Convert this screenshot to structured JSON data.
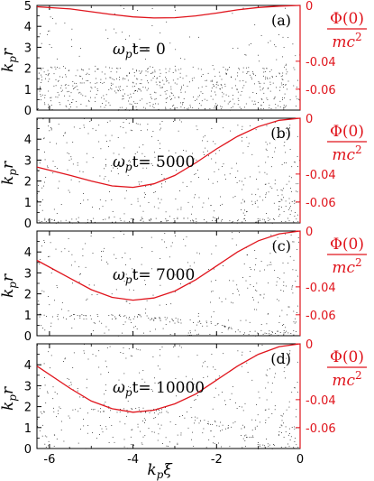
{
  "chart_data": [
    {
      "type": "scatter",
      "panel_label": "(a)",
      "annotation": {
        "prefix": "ω",
        "sub": "p",
        "text": "t= 0"
      },
      "xlim": [
        -6.3,
        0
      ],
      "ylim": [
        0,
        5
      ],
      "xticks": [
        "-6",
        "-4",
        "-2",
        "0"
      ],
      "xtick_values": [
        -6,
        -4,
        -2,
        0
      ],
      "yticks": [
        "0",
        "1",
        "2",
        "3",
        "4",
        "5"
      ],
      "ytick_values": [
        0,
        1,
        2,
        3,
        4,
        5
      ],
      "xlabel": {
        "main": "k",
        "sub": "p",
        "tail": "ξ"
      },
      "ylabel": {
        "main": "k",
        "sub": "p",
        "tail": "r"
      },
      "right_axis": {
        "label": {
          "num": "Φ(0)",
          "den_main": "mc",
          "den_sup": "2"
        },
        "ylim": [
          -0.075,
          0.0
        ],
        "ticks": [
          "0",
          "-0.04",
          "-0.06"
        ],
        "tick_values": [
          0,
          -0.04,
          -0.06
        ],
        "series": {
          "name": "Φ(0)/mc²",
          "color": "#e0141c",
          "x": [
            -6.3,
            -5.5,
            -5.0,
            -4.5,
            -4.0,
            -3.5,
            -3.0,
            -2.5,
            -2.0,
            -1.5,
            -1.0,
            -0.5,
            0
          ],
          "y": [
            -0.001,
            -0.0025,
            -0.0045,
            -0.0065,
            -0.0082,
            -0.009,
            -0.0088,
            -0.0075,
            -0.0055,
            -0.0032,
            -0.0015,
            -0.0005,
            0
          ]
        }
      },
      "particles": {
        "color": "#000000",
        "density": "uniform below kpr≈2.1, sparse above"
      }
    },
    {
      "type": "scatter",
      "panel_label": "(b)",
      "annotation": {
        "prefix": "ω",
        "sub": "p",
        "text": "t= 5000"
      },
      "xlim": [
        -6.3,
        0
      ],
      "ylim": [
        0,
        5
      ],
      "xticks": [
        "-6",
        "-4",
        "-2",
        "0"
      ],
      "xtick_values": [
        -6,
        -4,
        -2,
        0
      ],
      "yticks": [
        "0",
        "1",
        "2",
        "3",
        "4"
      ],
      "ytick_values": [
        0,
        1,
        2,
        3,
        4
      ],
      "xlabel": {
        "main": "k",
        "sub": "p",
        "tail": "ξ"
      },
      "ylabel": {
        "main": "k",
        "sub": "p",
        "tail": "r"
      },
      "right_axis": {
        "label": {
          "num": "Φ(0)",
          "den_main": "mc",
          "den_sup": "2"
        },
        "ylim": [
          -0.075,
          0.0
        ],
        "ticks": [
          "0",
          "-0.04",
          "-0.06"
        ],
        "tick_values": [
          0,
          -0.04,
          -0.06
        ],
        "series": {
          "name": "Φ(0)/mc²",
          "color": "#e0141c",
          "x": [
            -6.3,
            -5.5,
            -5.0,
            -4.5,
            -4.0,
            -3.5,
            -3.0,
            -2.5,
            -2.0,
            -1.5,
            -1.0,
            -0.5,
            0
          ],
          "y": [
            -0.035,
            -0.041,
            -0.045,
            -0.0485,
            -0.0495,
            -0.047,
            -0.041,
            -0.032,
            -0.022,
            -0.013,
            -0.006,
            -0.0015,
            0
          ]
        }
      },
      "particles": {
        "color": "#000000",
        "density": "depleted core; dense near axis, spreading at larger r"
      }
    },
    {
      "type": "scatter",
      "panel_label": "(c)",
      "annotation": {
        "prefix": "ω",
        "sub": "p",
        "text": "t= 7000"
      },
      "xlim": [
        -6.3,
        0
      ],
      "ylim": [
        0,
        5
      ],
      "xticks": [
        "-6",
        "-4",
        "-2",
        "0"
      ],
      "xtick_values": [
        -6,
        -4,
        -2,
        0
      ],
      "yticks": [
        "0",
        "1",
        "2",
        "3",
        "4"
      ],
      "ytick_values": [
        0,
        1,
        2,
        3,
        4
      ],
      "xlabel": {
        "main": "k",
        "sub": "p",
        "tail": "ξ"
      },
      "ylabel": {
        "main": "k",
        "sub": "p",
        "tail": "r"
      },
      "right_axis": {
        "label": {
          "num": "Φ(0)",
          "den_main": "mc",
          "den_sup": "2"
        },
        "ylim": [
          -0.075,
          0.0
        ],
        "ticks": [
          "0",
          "-0.04",
          "-0.06"
        ],
        "tick_values": [
          0,
          -0.04,
          -0.06
        ],
        "series": {
          "name": "Φ(0)/mc²",
          "color": "#e0141c",
          "x": [
            -6.3,
            -5.5,
            -5.0,
            -4.5,
            -4.0,
            -3.5,
            -3.0,
            -2.5,
            -2.0,
            -1.5,
            -1.0,
            -0.5,
            0
          ],
          "y": [
            -0.021,
            -0.034,
            -0.042,
            -0.0475,
            -0.0495,
            -0.048,
            -0.043,
            -0.035,
            -0.025,
            -0.015,
            -0.007,
            -0.002,
            0
          ]
        }
      },
      "particles": {
        "color": "#000000",
        "density": "sheath boundary near kpr≈0.8 curving to axis at kpξ≈-1.4"
      }
    },
    {
      "type": "scatter",
      "panel_label": "(d)",
      "annotation": {
        "prefix": "ω",
        "sub": "p",
        "text": "t= 10000"
      },
      "xlim": [
        -6.3,
        0
      ],
      "ylim": [
        0,
        5
      ],
      "xticks": [
        "-6",
        "-4",
        "-2",
        "0"
      ],
      "xtick_values": [
        -6,
        -4,
        -2,
        0
      ],
      "yticks": [
        "0",
        "1",
        "2",
        "3",
        "4"
      ],
      "ytick_values": [
        0,
        1,
        2,
        3,
        4
      ],
      "xlabel": {
        "main": "k",
        "sub": "p",
        "tail": "ξ"
      },
      "ylabel": {
        "main": "k",
        "sub": "p",
        "tail": "r"
      },
      "right_axis": {
        "label": {
          "num": "Φ(0)",
          "den_main": "mc",
          "den_sup": "2"
        },
        "ylim": [
          -0.075,
          0.0
        ],
        "ticks": [
          "0",
          "-0.04",
          "-0.06"
        ],
        "tick_values": [
          0,
          -0.04,
          -0.06
        ],
        "series": {
          "name": "Φ(0)/mc²",
          "color": "#e0141c",
          "x": [
            -6.3,
            -5.5,
            -5.0,
            -4.5,
            -4.0,
            -3.5,
            -3.0,
            -2.5,
            -2.0,
            -1.5,
            -1.0,
            -0.5,
            0
          ],
          "y": [
            -0.016,
            -0.032,
            -0.041,
            -0.0465,
            -0.049,
            -0.0475,
            -0.043,
            -0.036,
            -0.026,
            -0.016,
            -0.0075,
            -0.002,
            0
          ]
        }
      },
      "particles": {
        "color": "#000000",
        "density": "sheath boundary near kpr≈1.7 curving to axis at kpξ≈-1.0"
      }
    }
  ]
}
